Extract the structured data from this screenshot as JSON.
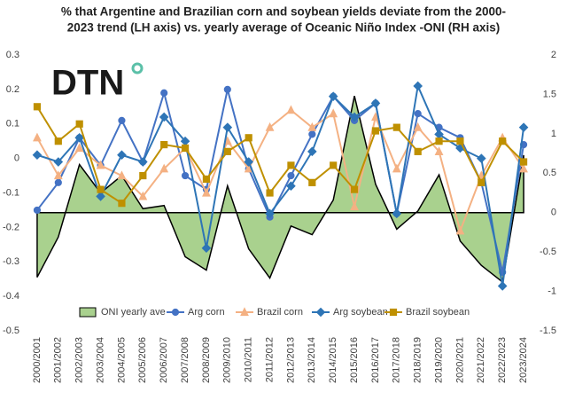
{
  "logo": "DTN",
  "chart_data": {
    "type": "combo",
    "title": [
      "% that Argentine and Brazilian corn and soybean yields deviate from the 2000-",
      "2023  trend (LH axis) vs. yearly average of Oceanic Niño Index -ONI  (RH axis)"
    ],
    "categories": [
      "2000/2001",
      "2001/2002",
      "2002/2003",
      "2003/2004",
      "2004/2005",
      "2005/2006",
      "2006/2007",
      "2007/2008",
      "2008/2009",
      "2009/2010",
      "2010/2011",
      "2011/2012",
      "2012/2013",
      "2013/2014",
      "2014/2015",
      "2015/2016",
      "2016/2017",
      "2017/2018",
      "2018/2019",
      "2019/2020",
      "2020/2021",
      "2021/2022",
      "2022/2023",
      "2023/2024"
    ],
    "ylim": [
      -0.5,
      0.3
    ],
    "yticks": [
      -0.5,
      -0.4,
      -0.3,
      -0.2,
      -0.1,
      0,
      0.1,
      0.2,
      0.3
    ],
    "y2lim": [
      -1.5,
      2
    ],
    "y2ticks": [
      -1.5,
      -1,
      -0.5,
      0,
      0.5,
      1,
      1.5,
      2
    ],
    "legend": "bottom",
    "series": [
      {
        "name": "ONI yearly ave",
        "type": "area",
        "axis": "y2",
        "color": "#a9d18e",
        "values": [
          -0.82,
          -0.31,
          0.61,
          0.25,
          0.47,
          0.05,
          0.09,
          -0.56,
          -0.73,
          0.34,
          -0.46,
          -0.83,
          -0.17,
          -0.28,
          0.16,
          1.48,
          0.36,
          -0.21,
          0.02,
          0.48,
          -0.36,
          -0.67,
          -0.88,
          0.73
        ]
      },
      {
        "name": "Arg corn",
        "type": "line",
        "marker": "circle",
        "color": "#4472c4",
        "values": [
          -0.15,
          -0.07,
          0.06,
          -0.02,
          0.11,
          -0.01,
          0.19,
          -0.05,
          -0.09,
          0.2,
          -0.03,
          -0.17,
          -0.05,
          0.07,
          0.18,
          0.11,
          0.16,
          -0.16,
          0.13,
          0.09,
          0.06,
          -0.07,
          -0.33,
          0.04
        ]
      },
      {
        "name": "Brazil corn",
        "type": "line",
        "marker": "triangle",
        "color": "#f4b183",
        "values": [
          0.06,
          -0.05,
          0.03,
          -0.02,
          -0.05,
          -0.11,
          -0.03,
          0.03,
          -0.1,
          0.05,
          -0.03,
          0.09,
          0.14,
          0.09,
          0.13,
          -0.14,
          0.12,
          -0.03,
          0.09,
          0.02,
          -0.21,
          -0.05,
          0.06,
          -0.03
        ]
      },
      {
        "name": "Arg soybean",
        "type": "line",
        "marker": "diamond",
        "color": "#2e75b6",
        "values": [
          0.01,
          -0.01,
          0.06,
          -0.11,
          0.01,
          -0.01,
          0.12,
          0.05,
          -0.26,
          0.09,
          -0.01,
          -0.16,
          -0.08,
          0.02,
          0.18,
          0.12,
          0.16,
          -0.16,
          0.21,
          0.07,
          0.03,
          0,
          -0.37,
          0.09
        ]
      },
      {
        "name": "Brazil soybean",
        "type": "line",
        "marker": "square",
        "color": "#bf9000",
        "values": [
          0.15,
          0.05,
          0.1,
          -0.09,
          -0.13,
          -0.05,
          0.04,
          0.03,
          -0.06,
          0.02,
          0.06,
          -0.1,
          -0.02,
          -0.07,
          -0.02,
          -0.09,
          0.08,
          0.09,
          0.02,
          0.05,
          0.05,
          -0.07,
          0.05,
          -0.01
        ]
      }
    ]
  }
}
